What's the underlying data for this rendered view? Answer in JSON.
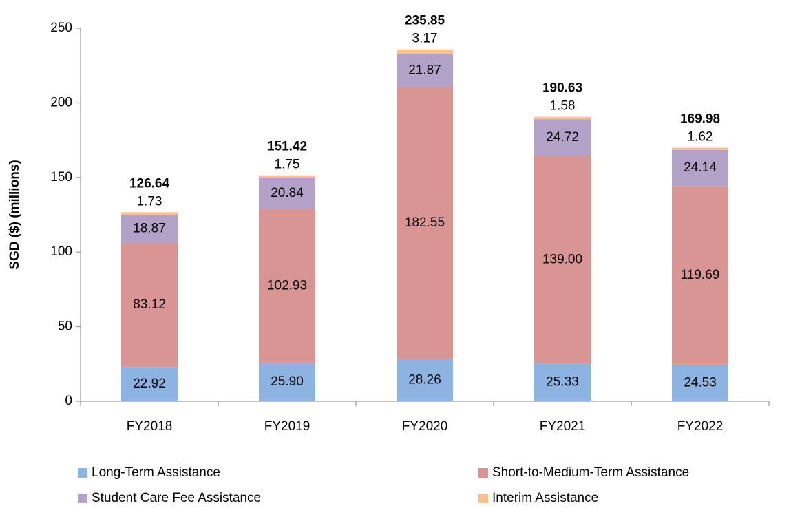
{
  "chart_data": {
    "type": "stacked_bar",
    "y_label": "SGD ($) (millions)",
    "categories": [
      "FY2018",
      "FY2019",
      "FY2020",
      "FY2021",
      "FY2022"
    ],
    "series": [
      {
        "name": "Long-Term Assistance",
        "color": "#8db3e2",
        "values": [
          22.92,
          25.9,
          28.26,
          25.33,
          24.53
        ],
        "value_labels": [
          "22.92",
          "25.90",
          "28.26",
          "25.33",
          "24.53"
        ]
      },
      {
        "name": "Short-to-Medium-Term Assistance",
        "color": "#d99594",
        "values": [
          83.12,
          102.93,
          182.55,
          139.0,
          119.69
        ],
        "value_labels": [
          "83.12",
          "102.93",
          "182.55",
          "139.00",
          "119.69"
        ]
      },
      {
        "name": "Student Care Fee Assistance",
        "color": "#b2a2c7",
        "values": [
          18.87,
          20.84,
          21.87,
          24.72,
          24.14
        ],
        "value_labels": [
          "18.87",
          "20.84",
          "21.87",
          "24.72",
          "24.14"
        ]
      },
      {
        "name": "Interim Assistance",
        "color": "#fac08f",
        "values": [
          1.73,
          1.75,
          3.17,
          1.58,
          1.62
        ],
        "value_labels": [
          "1.73",
          "1.75",
          "3.17",
          "1.58",
          "1.62"
        ]
      }
    ],
    "totals": [
      126.64,
      151.42,
      235.85,
      190.63,
      169.98
    ],
    "ylim": [
      0,
      250
    ],
    "yticks": [
      0,
      50,
      100,
      150,
      200,
      250
    ],
    "grid": false
  }
}
